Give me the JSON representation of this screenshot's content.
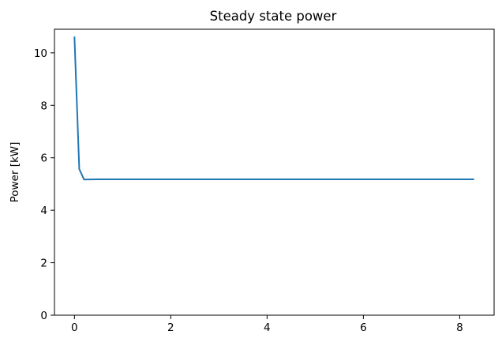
{
  "chart_data": {
    "type": "line",
    "title": "Steady state power",
    "xlabel": "",
    "ylabel": "Power [kW]",
    "xlim": [
      -0.415,
      8.715
    ],
    "ylim": [
      0,
      10.9
    ],
    "xticks": [
      0,
      2,
      4,
      6,
      8
    ],
    "yticks": [
      0,
      2,
      4,
      6,
      8,
      10
    ],
    "grid": false,
    "legend": "none",
    "series": [
      {
        "color": "#1f77b4",
        "x": [
          0,
          0.1,
          0.2,
          0.5,
          1,
          2,
          3,
          4,
          5,
          6,
          7,
          8,
          8.3
        ],
        "y": [
          10.62,
          5.57,
          5.17,
          5.18,
          5.18,
          5.18,
          5.18,
          5.18,
          5.18,
          5.18,
          5.18,
          5.18,
          5.18
        ]
      }
    ]
  }
}
